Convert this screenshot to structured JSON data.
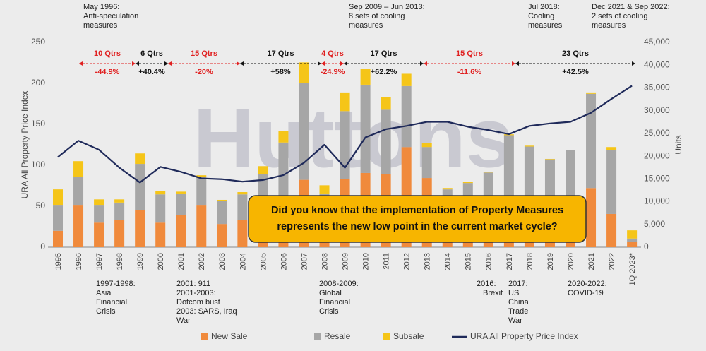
{
  "chart_data": {
    "type": "bar-line",
    "watermark": "Huttons",
    "y_label": "URA All Property Price Index",
    "y2_label": "Units",
    "categories": [
      "1995",
      "1996",
      "1997",
      "1998",
      "1999",
      "2000",
      "2001",
      "2002",
      "2003",
      "2004",
      "2005",
      "2006",
      "2007",
      "2008",
      "2009",
      "2010",
      "2011",
      "2012",
      "2013",
      "2014",
      "2015",
      "2016",
      "2017",
      "2018",
      "2019",
      "2020",
      "2021",
      "2022",
      "1Q 2023*"
    ],
    "ylim": [
      0,
      250
    ],
    "yticks": [
      0,
      50,
      100,
      150,
      200,
      250
    ],
    "y2lim": [
      0,
      45000
    ],
    "y2ticks": [
      0,
      {
        "value": 5000,
        "label": "5,000"
      },
      {
        "value": 10000,
        "label": "10,000"
      },
      {
        "value": 15000,
        "label": "15,000"
      },
      {
        "value": 20000,
        "label": "20,000"
      },
      {
        "value": 25000,
        "label": "25,000"
      },
      {
        "value": 30000,
        "label": "30,000"
      },
      {
        "value": 35000,
        "label": "35,000"
      },
      {
        "value": 40000,
        "label": "40,000"
      },
      {
        "value": 45000,
        "label": "45,000"
      }
    ],
    "series": [
      {
        "name": "New Sale",
        "color": "#f08a3c",
        "axis": "y2",
        "values": [
          3600,
          9300,
          5400,
          5900,
          8100,
          5400,
          7100,
          9300,
          5100,
          5900,
          5500,
          11000,
          14800,
          4200,
          15000,
          16300,
          16000,
          22000,
          15200,
          7900,
          7400,
          8000,
          10600,
          8800,
          9900,
          9800,
          13000,
          7300,
          1100
        ]
      },
      {
        "name": "Resale",
        "color": "#a6a6a6",
        "axis": "y2",
        "values": [
          5700,
          6200,
          3900,
          3900,
          10200,
          6200,
          4700,
          6200,
          5100,
          5700,
          10600,
          12000,
          21200,
          7600,
          14900,
          19400,
          14200,
          13400,
          6800,
          4800,
          6700,
          8400,
          14000,
          13300,
          9400,
          11500,
          20700,
          14000,
          800
        ]
      },
      {
        "name": "Subsale",
        "color": "#f5c518",
        "axis": "y2",
        "values": [
          3400,
          3400,
          1200,
          700,
          2300,
          800,
          400,
          300,
          200,
          500,
          1700,
          2600,
          4600,
          1800,
          4100,
          3400,
          2700,
          2700,
          900,
          300,
          200,
          200,
          200,
          200,
          100,
          100,
          300,
          700,
          1800
        ]
      },
      {
        "name": "URA All Property Price Index",
        "color": "#1f2a5a",
        "type": "line",
        "values": [
          110,
          130,
          119,
          97,
          79,
          98,
          92,
          84,
          83,
          80,
          82,
          88,
          103,
          125,
          97,
          134,
          144,
          148,
          153,
          153,
          147,
          143,
          138,
          148,
          151,
          153,
          164,
          181,
          197
        ]
      }
    ],
    "top_notes": [
      [
        "May 1996:",
        "Anti-speculation",
        "measures"
      ],
      [
        "Sep 2009 – Jun 2013:",
        "8 sets of cooling",
        "measures"
      ],
      [
        "Jul 2018:",
        "Cooling",
        "measures"
      ],
      [
        "Dec 2021 & Sep 2022:",
        "2 sets of cooling",
        "measures"
      ]
    ],
    "periods": [
      {
        "label": "10 Qtrs",
        "change": "-44.9%",
        "color": "#e02020"
      },
      {
        "label": "6 Qtrs",
        "change": "+40.4%",
        "color": "#111111"
      },
      {
        "label": "15 Qtrs",
        "change": "-20%",
        "color": "#e02020"
      },
      {
        "label": "17 Qtrs",
        "change": "+58%",
        "color": "#111111"
      },
      {
        "label": "4 Qtrs",
        "change": "-24.9%",
        "color": "#e02020"
      },
      {
        "label": "17 Qtrs",
        "change": "+62.2%",
        "color": "#111111"
      },
      {
        "label": "15 Qtrs",
        "change": "-11.6%",
        "color": "#e02020"
      },
      {
        "label": "23 Qtrs",
        "change": "+42.5%",
        "color": "#111111"
      }
    ],
    "bottom_notes": [
      [
        "1997-1998:",
        "Asia",
        "Financial",
        "Crisis"
      ],
      [
        "2001: 911",
        "2001-2003:",
        "Dotcom bust",
        "2003: SARS, Iraq",
        "War"
      ],
      [
        "2008-2009:",
        "Global",
        "Financial",
        "Crisis"
      ],
      [
        "2016:",
        "Brexit"
      ],
      [
        "2017:",
        "US",
        "China",
        "Trade",
        "War"
      ],
      [
        "2020-2022:",
        "COVID-19"
      ]
    ],
    "callout": [
      "Did you know that the implementation of Property Measures",
      "represents the new low point in the current market cycle?"
    ]
  }
}
